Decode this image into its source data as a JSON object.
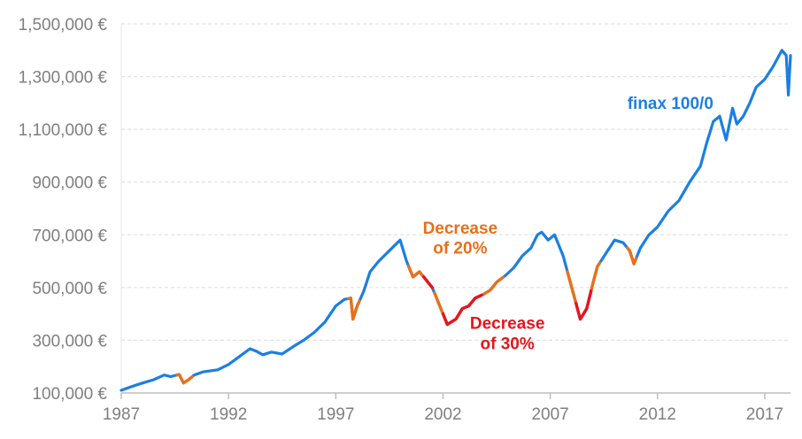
{
  "chart_data": {
    "type": "line",
    "title": "",
    "xlabel": "",
    "ylabel": "",
    "currency_suffix": " €",
    "xlim": [
      1987,
      2018.2
    ],
    "ylim": [
      100000,
      1500000
    ],
    "y_ticks": [
      100000,
      300000,
      500000,
      700000,
      900000,
      1100000,
      1300000,
      1500000
    ],
    "y_tick_labels": [
      "100,000 €",
      "300,000 €",
      "500,000 €",
      "700,000 €",
      "900,000 €",
      "1,100,000 €",
      "1,300,000 €",
      "1,500,000 €"
    ],
    "x_ticks": [
      1987,
      1992,
      1997,
      2002,
      2007,
      2012,
      2017
    ],
    "x_tick_labels": [
      "1987",
      "1992",
      "1997",
      "2002",
      "2007",
      "2012",
      "2017"
    ],
    "grid": "horizontal dashed",
    "colors": {
      "main": "#1a7fe3",
      "decrease20": "#e8701a",
      "decrease30": "#e8141b",
      "grid": "#dcdcdc",
      "axis": "#bdbdbd",
      "tick_text": "#7f7f7f"
    },
    "series": [
      {
        "name": "finax 100/0",
        "x": [
          1987.0,
          1987.5,
          1988.0,
          1988.5,
          1989.0,
          1989.3,
          1989.7,
          1989.9,
          1990.1,
          1990.4,
          1990.8,
          1991.5,
          1992.0,
          1992.5,
          1993.0,
          1993.3,
          1993.6,
          1994.0,
          1994.5,
          1995.0,
          1995.5,
          1996.0,
          1996.5,
          1997.0,
          1997.4,
          1997.7,
          1997.8,
          1998.0,
          1998.3,
          1998.6,
          1999.0,
          1999.5,
          2000.0,
          2000.3,
          2000.6,
          2000.9,
          2001.2,
          2001.5,
          2001.8,
          2002.2,
          2002.6,
          2002.9,
          2003.2,
          2003.5,
          2003.9,
          2004.2,
          2004.5,
          2004.9,
          2005.3,
          2005.7,
          2006.1,
          2006.4,
          2006.6,
          2006.9,
          2007.2,
          2007.6,
          2007.8,
          2008.1,
          2008.4,
          2008.7,
          2009.0,
          2009.2,
          2009.6,
          2010.0,
          2010.4,
          2010.7,
          2010.9,
          2011.2,
          2011.6,
          2012.0,
          2012.5,
          2013.0,
          2013.5,
          2014.0,
          2014.3,
          2014.6,
          2014.9,
          2015.2,
          2015.5,
          2015.7,
          2016.0,
          2016.3,
          2016.6,
          2017.0,
          2017.4,
          2017.8,
          2018.0,
          2018.1,
          2018.2
        ],
        "y": [
          110000,
          125000,
          138000,
          150000,
          168000,
          162000,
          170000,
          138000,
          148000,
          168000,
          180000,
          188000,
          208000,
          238000,
          268000,
          258000,
          245000,
          255000,
          248000,
          275000,
          300000,
          330000,
          370000,
          430000,
          455000,
          460000,
          380000,
          430000,
          485000,
          560000,
          600000,
          640000,
          680000,
          600000,
          540000,
          560000,
          530000,
          500000,
          440000,
          360000,
          380000,
          420000,
          430000,
          460000,
          475000,
          490000,
          520000,
          545000,
          575000,
          620000,
          650000,
          700000,
          710000,
          680000,
          700000,
          620000,
          560000,
          470000,
          380000,
          420000,
          520000,
          580000,
          630000,
          680000,
          670000,
          640000,
          590000,
          650000,
          700000,
          730000,
          790000,
          830000,
          900000,
          960000,
          1050000,
          1130000,
          1150000,
          1060000,
          1180000,
          1120000,
          1150000,
          1200000,
          1260000,
          1290000,
          1340000,
          1400000,
          1380000,
          1230000,
          1380000
        ]
      }
    ],
    "highlighted_segments": [
      {
        "label": "Decrease of 20%",
        "color": "#e8701a",
        "x_ranges": [
          [
            1989.6,
            1990.3
          ],
          [
            1997.6,
            1998.1
          ],
          [
            2000.4,
            2001.1
          ],
          [
            2001.6,
            2002.0
          ],
          [
            2003.9,
            2004.8
          ],
          [
            2007.8,
            2008.2
          ],
          [
            2008.9,
            2009.3
          ],
          [
            2010.6,
            2011.0
          ]
        ]
      },
      {
        "label": "Decrease of 30%",
        "color": "#e8141b",
        "x_ranges": [
          [
            2001.1,
            2001.5
          ],
          [
            2002.0,
            2003.8
          ],
          [
            2008.2,
            2008.9
          ]
        ]
      }
    ],
    "annotations": [
      {
        "text": "finax 100/0",
        "color": "#1a7fe3",
        "x": 2012.6,
        "y": 1178000
      },
      {
        "text": "Decrease",
        "color": "#e8701a",
        "x": 2002.8,
        "y": 705000
      },
      {
        "text": "of 20%",
        "color": "#e8701a",
        "x": 2002.8,
        "y": 628000
      },
      {
        "text": "Decrease",
        "color": "#e8141b",
        "x": 2005.0,
        "y": 343000
      },
      {
        "text": "of 30%",
        "color": "#e8141b",
        "x": 2005.0,
        "y": 266000
      }
    ]
  }
}
